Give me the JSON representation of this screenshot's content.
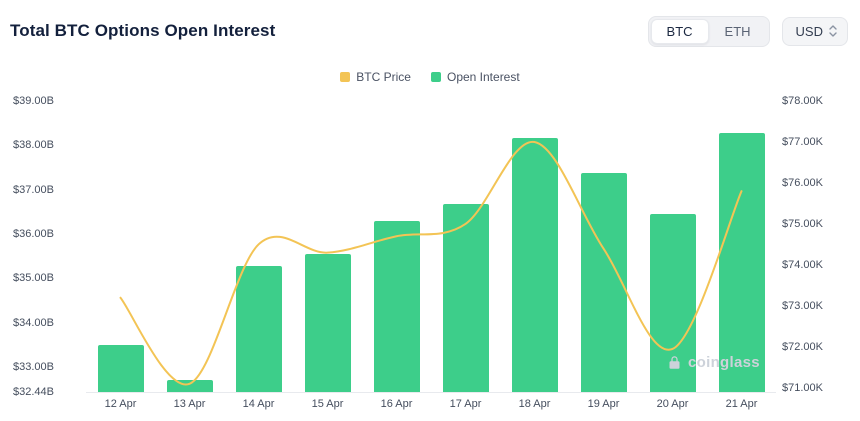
{
  "header": {
    "title": "Total BTC Options Open Interest",
    "toggle": {
      "options": [
        "BTC",
        "ETH"
      ],
      "selected": "BTC"
    },
    "currency_select": {
      "value": "USD"
    }
  },
  "legend": [
    {
      "label": "BTC Price",
      "color": "#F3C455"
    },
    {
      "label": "Open Interest",
      "color": "#3DCE8A"
    }
  ],
  "watermark": "coinglass",
  "chart_data": {
    "type": "bar",
    "subtype": "bar+line combo, dual axis",
    "title": "Total BTC Options Open Interest",
    "categories": [
      "12 Apr",
      "13 Apr",
      "14 Apr",
      "15 Apr",
      "16 Apr",
      "17 Apr",
      "18 Apr",
      "19 Apr",
      "20 Apr",
      "21 Apr"
    ],
    "series": [
      {
        "name": "Open Interest",
        "render": "bar",
        "axis": "left",
        "unit": "$B",
        "color": "#3DCE8A",
        "values": [
          33.5,
          32.72,
          35.28,
          35.55,
          36.3,
          36.68,
          38.16,
          37.37,
          36.45,
          38.28
        ]
      },
      {
        "name": "BTC Price",
        "render": "line",
        "axis": "right",
        "unit": "$K",
        "color": "#F3C455",
        "values": [
          73.2,
          71.1,
          74.5,
          74.3,
          74.7,
          75.0,
          77.0,
          74.4,
          71.95,
          75.8
        ]
      }
    ],
    "left_axis": {
      "min": 32.44,
      "max": 39.0,
      "tick_values": [
        39.0,
        38.0,
        37.0,
        36.0,
        35.0,
        34.0,
        33.0,
        32.44
      ],
      "tick_labels": [
        "$39.00B",
        "$38.00B",
        "$37.00B",
        "$36.00B",
        "$35.00B",
        "$34.00B",
        "$33.00B",
        "$32.44B"
      ]
    },
    "right_axis": {
      "min": 70.9,
      "max": 78.0,
      "tick_values": [
        78.0,
        77.0,
        76.0,
        75.0,
        74.0,
        73.0,
        72.0,
        71.0
      ],
      "tick_labels": [
        "$78.00K",
        "$77.00K",
        "$76.00K",
        "$75.00K",
        "$74.00K",
        "$73.00K",
        "$72.00K",
        "$71.00K"
      ]
    },
    "grid": false,
    "legend_position": "top"
  }
}
